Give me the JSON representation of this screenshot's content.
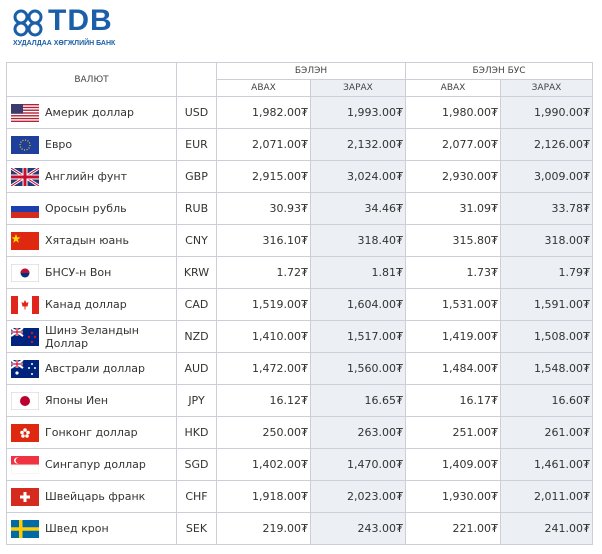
{
  "header": {
    "logo": "TDB",
    "bank_name": "ХУДАЛДАА ХӨГЖЛИЙН БАНК"
  },
  "table": {
    "columns": {
      "currency": "ВАЛЮТ",
      "cash": "БЭЛЭН",
      "noncash": "БЭЛЭН БУС",
      "buy": "АВАХ",
      "sell": "ЗАРАХ"
    },
    "rows": [
      [
        "Америк доллар",
        "USD",
        "1,982.00₮",
        "1,993.00₮",
        "1,980.00₮",
        "1,990.00₮"
      ],
      [
        "Евро",
        "EUR",
        "2,071.00₮",
        "2,132.00₮",
        "2,077.00₮",
        "2,126.00₮"
      ],
      [
        "Английн фунт",
        "GBP",
        "2,915.00₮",
        "3,024.00₮",
        "2,930.00₮",
        "3,009.00₮"
      ],
      [
        "Оросын рубль",
        "RUB",
        "30.93₮",
        "34.46₮",
        "31.09₮",
        "33.78₮"
      ],
      [
        "Хятадын юань",
        "CNY",
        "316.10₮",
        "318.40₮",
        "315.80₮",
        "318.00₮"
      ],
      [
        "БНСУ-н Вон",
        "KRW",
        "1.72₮",
        "1.81₮",
        "1.73₮",
        "1.79₮"
      ],
      [
        "Канад доллар",
        "CAD",
        "1,519.00₮",
        "1,604.00₮",
        "1,531.00₮",
        "1,591.00₮"
      ],
      [
        "Шинэ Зеландын Доллар",
        "NZD",
        "1,410.00₮",
        "1,517.00₮",
        "1,419.00₮",
        "1,508.00₮"
      ],
      [
        "Австрали доллар",
        "AUD",
        "1,472.00₮",
        "1,560.00₮",
        "1,484.00₮",
        "1,548.00₮"
      ],
      [
        "Японы Иен",
        "JPY",
        "16.12₮",
        "16.65₮",
        "16.17₮",
        "16.60₮"
      ],
      [
        "Гонконг доллар",
        "HKD",
        "250.00₮",
        "263.00₮",
        "251.00₮",
        "261.00₮"
      ],
      [
        "Сингапур доллар",
        "SGD",
        "1,402.00₮",
        "1,470.00₮",
        "1,409.00₮",
        "1,461.00₮"
      ],
      [
        "Швейцарь франк",
        "CHF",
        "1,918.00₮",
        "2,023.00₮",
        "1,930.00₮",
        "2,011.00₮"
      ],
      [
        "Швед крон",
        "SEK",
        "219.00₮",
        "243.00₮",
        "221.00₮",
        "241.00₮"
      ]
    ]
  }
}
